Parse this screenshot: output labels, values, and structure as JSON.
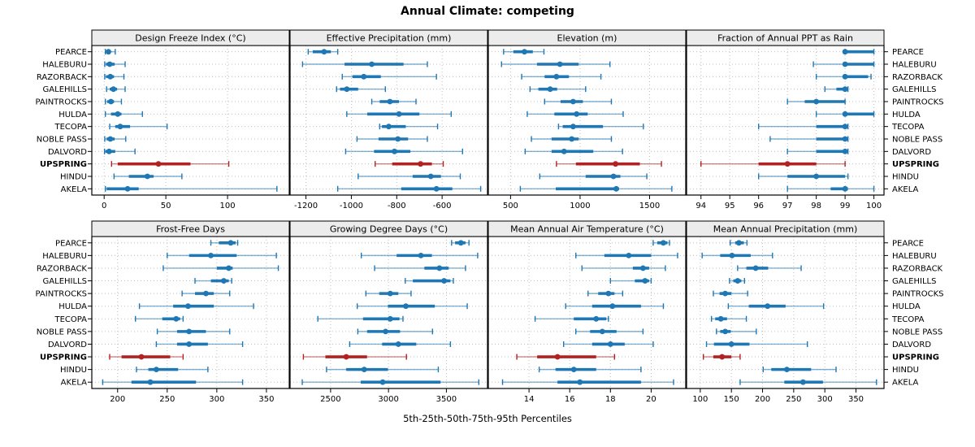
{
  "title": "Annual Climate: competing",
  "footer": "5th-25th-50th-75th-95th Percentiles",
  "sites": [
    "PEARCE",
    "HALEBURU",
    "RAZORBACK",
    "GALEHILLS",
    "PAINTROCKS",
    "HULDA",
    "TECOPA",
    "NOBLE PASS",
    "DALVORD",
    "UPSPRING",
    "HINDU",
    "AKELA"
  ],
  "highlight_site": "UPSPRING",
  "colors": {
    "series": "#1f77b4",
    "highlight": "#b22222",
    "strip_bg": "#ececec",
    "grid": "#bfbfbf",
    "border": "#000000"
  },
  "chart_data": {
    "type": "percentile_dotplot",
    "title": "Annual Climate: competing",
    "caption": "5th-25th-50th-75th-95th Percentiles",
    "percentiles": [
      5,
      25,
      50,
      75,
      95
    ],
    "layout": {
      "rows": 2,
      "cols": 4
    },
    "legend": "none",
    "grid": "dotted",
    "panels": [
      {
        "title": "Design Freeze Index (°C)",
        "ticks": [
          0,
          50,
          100
        ],
        "xlim": [
          -10,
          150
        ],
        "values": {
          "PEARCE": [
            1,
            2,
            3.5,
            5,
            9
          ],
          "HALEBURU": [
            0.5,
            1.5,
            4.5,
            8.5,
            17
          ],
          "RAZORBACK": [
            0.5,
            1.5,
            5,
            8,
            16
          ],
          "GALEHILLS": [
            2,
            4.5,
            7.5,
            10.5,
            17
          ],
          "PAINTROCKS": [
            1,
            2.5,
            5.5,
            8,
            14
          ],
          "HULDA": [
            1,
            5.5,
            11,
            14,
            31
          ],
          "TECOPA": [
            4.5,
            9,
            13,
            21,
            51
          ],
          "NOBLE PASS": [
            0.5,
            2,
            5,
            8.5,
            17.5
          ],
          "DALVORD": [
            0.3,
            1,
            4,
            9,
            25
          ],
          "UPSPRING": [
            6,
            11,
            44,
            70,
            101
          ],
          "HINDU": [
            8,
            20,
            35,
            40,
            63
          ],
          "AKELA": [
            1,
            2,
            19,
            28,
            140
          ]
        }
      },
      {
        "title": "Effective Precipitation (mm)",
        "ticks": [
          -1200,
          -1000,
          -800,
          -600
        ],
        "xlim": [
          -1270,
          -400
        ],
        "values": {
          "PEARCE": [
            -1190,
            -1170,
            -1120,
            -1090,
            -1060
          ],
          "HALEBURU": [
            -1215,
            -1030,
            -910,
            -770,
            -665
          ],
          "RAZORBACK": [
            -1040,
            -995,
            -945,
            -870,
            -625
          ],
          "GALEHILLS": [
            -1065,
            -1050,
            -1020,
            -970,
            -850
          ],
          "PAINTROCKS": [
            -910,
            -875,
            -830,
            -790,
            -715
          ],
          "HULDA": [
            -1020,
            -930,
            -790,
            -700,
            -560
          ],
          "TECOPA": [
            -875,
            -865,
            -835,
            -760,
            -620
          ],
          "NOBLE PASS": [
            -975,
            -880,
            -795,
            -750,
            -665
          ],
          "DALVORD": [
            -1025,
            -900,
            -810,
            -740,
            -510
          ],
          "UPSPRING": [
            -895,
            -820,
            -695,
            -645,
            -595
          ],
          "HINDU": [
            -970,
            -730,
            -650,
            -605,
            -520
          ],
          "AKELA": [
            -1060,
            -780,
            -625,
            -555,
            -430
          ]
        }
      },
      {
        "title": "Elevation (m)",
        "ticks": [
          500,
          1000,
          1500
        ],
        "xlim": [
          340,
          1760
        ],
        "values": {
          "PEARCE": [
            450,
            520,
            600,
            660,
            740
          ],
          "HALEBURU": [
            435,
            690,
            855,
            990,
            1215
          ],
          "RAZORBACK": [
            580,
            745,
            830,
            920,
            1150
          ],
          "GALEHILLS": [
            640,
            700,
            785,
            835,
            1040
          ],
          "PAINTROCKS": [
            745,
            860,
            950,
            1020,
            1225
          ],
          "HULDA": [
            620,
            815,
            975,
            1055,
            1310
          ],
          "TECOPA": [
            845,
            875,
            950,
            1165,
            1455
          ],
          "NOBLE PASS": [
            650,
            795,
            940,
            990,
            1225
          ],
          "DALVORD": [
            605,
            795,
            885,
            1095,
            1305
          ],
          "UPSPRING": [
            830,
            970,
            1255,
            1430,
            1585
          ],
          "HINDU": [
            710,
            1040,
            1240,
            1290,
            1480
          ],
          "AKELA": [
            570,
            825,
            1260,
            1280,
            1660
          ]
        }
      },
      {
        "title": "Fraction of Annual PPT as Rain",
        "ticks": [
          94,
          95,
          96,
          97,
          98,
          99,
          100
        ],
        "xlim": [
          93.5,
          100.35
        ],
        "values": {
          "PEARCE": [
            99,
            99,
            99,
            100,
            100
          ],
          "HALEBURU": [
            97.9,
            99,
            99,
            100,
            100
          ],
          "RAZORBACK": [
            98,
            99,
            99,
            99.8,
            99.9
          ],
          "GALEHILLS": [
            98.3,
            98.7,
            99,
            99,
            99.1
          ],
          "PAINTROCKS": [
            97,
            97.6,
            98,
            99,
            99
          ],
          "HULDA": [
            98,
            99,
            99,
            100,
            100
          ],
          "TECOPA": [
            96,
            98,
            99,
            99,
            99.1
          ],
          "NOBLE PASS": [
            96.4,
            98,
            99,
            99,
            99.1
          ],
          "DALVORD": [
            97,
            98,
            99,
            99,
            99.1
          ],
          "UPSPRING": [
            94,
            96,
            97,
            98,
            99
          ],
          "HINDU": [
            96,
            97,
            98,
            99,
            99.1
          ],
          "AKELA": [
            97,
            98.5,
            99,
            99.1,
            100
          ]
        }
      },
      {
        "title": "Frost-Free Days",
        "ticks": [
          200,
          250,
          300,
          350
        ],
        "xlim": [
          174,
          373
        ],
        "values": {
          "PEARCE": [
            294,
            302,
            314,
            319,
            321
          ],
          "HALEBURU": [
            250,
            272,
            294,
            320,
            360
          ],
          "RAZORBACK": [
            246,
            300,
            312,
            316,
            362
          ],
          "GALEHILLS": [
            278,
            294,
            307,
            312,
            315
          ],
          "PAINTROCKS": [
            265,
            278,
            289,
            297,
            313
          ],
          "HULDA": [
            222,
            256,
            271,
            297,
            337
          ],
          "TECOPA": [
            218,
            245,
            259,
            263,
            266
          ],
          "NOBLE PASS": [
            240,
            260,
            272,
            289,
            313
          ],
          "DALVORD": [
            239,
            260,
            272,
            291,
            326
          ],
          "UPSPRING": [
            192,
            204,
            224,
            253,
            266
          ],
          "HINDU": [
            219,
            231,
            239,
            261,
            291
          ],
          "AKELA": [
            185,
            214,
            233,
            279,
            326
          ]
        }
      },
      {
        "title": "Growing Degree Days (°C)",
        "ticks": [
          2500,
          3000,
          3500
        ],
        "xlim": [
          2150,
          3855
        ],
        "values": {
          "PEARCE": [
            3545,
            3575,
            3625,
            3665,
            3695
          ],
          "HALEBURU": [
            2765,
            3070,
            3280,
            3375,
            3770
          ],
          "RAZORBACK": [
            2880,
            3310,
            3440,
            3520,
            3665
          ],
          "GALEHILLS": [
            3145,
            3210,
            3480,
            3535,
            3560
          ],
          "PAINTROCKS": [
            2805,
            2920,
            3015,
            3085,
            3195
          ],
          "HULDA": [
            2730,
            2995,
            3150,
            3400,
            3680
          ],
          "TECOPA": [
            2390,
            2780,
            3015,
            3095,
            3125
          ],
          "NOBLE PASS": [
            2735,
            2815,
            2975,
            3100,
            3380
          ],
          "DALVORD": [
            2665,
            2945,
            3085,
            3240,
            3535
          ],
          "UPSPRING": [
            2265,
            2455,
            2635,
            2815,
            3155
          ],
          "HINDU": [
            2465,
            2635,
            2790,
            2995,
            3430
          ],
          "AKELA": [
            2255,
            2760,
            2950,
            3450,
            3780
          ]
        }
      },
      {
        "title": "Mean Annual Air Temperature (°C)",
        "ticks": [
          14,
          16,
          18,
          20
        ],
        "xlim": [
          12,
          21.7
        ],
        "values": {
          "PEARCE": [
            20.1,
            20.3,
            20.6,
            20.8,
            20.9
          ],
          "HALEBURU": [
            16.3,
            17.7,
            18.9,
            20,
            21.3
          ],
          "RAZORBACK": [
            16.6,
            19.1,
            19.6,
            19.9,
            20.7
          ],
          "GALEHILLS": [
            18,
            19.2,
            19.7,
            19.9,
            20
          ],
          "PAINTROCKS": [
            16.9,
            17.4,
            17.9,
            18.2,
            18.6
          ],
          "HULDA": [
            15.8,
            17.1,
            18.1,
            19.5,
            20.6
          ],
          "TECOPA": [
            14.3,
            16.2,
            17.3,
            17.8,
            17.9
          ],
          "NOBLE PASS": [
            16.3,
            17,
            17.6,
            18.3,
            19.6
          ],
          "DALVORD": [
            15.7,
            17.1,
            18,
            18.7,
            20.1
          ],
          "UPSPRING": [
            13.4,
            14.4,
            15.4,
            17.3,
            18.2
          ],
          "HINDU": [
            14.5,
            15.3,
            16.2,
            17.3,
            19.5
          ],
          "AKELA": [
            12.7,
            15.4,
            16.5,
            19.5,
            21.1
          ]
        }
      },
      {
        "title": "Mean Annual Precipitation (mm)",
        "ticks": [
          100,
          150,
          200,
          250,
          300,
          350
        ],
        "xlim": [
          78,
          395
        ],
        "values": {
          "PEARCE": [
            148,
            156,
            162,
            170,
            175
          ],
          "HALEBURU": [
            103,
            132,
            151,
            181,
            216
          ],
          "RAZORBACK": [
            160,
            174,
            189,
            209,
            262
          ],
          "GALEHILLS": [
            147,
            153,
            160,
            166,
            171
          ],
          "PAINTROCKS": [
            121,
            131,
            140,
            150,
            176
          ],
          "HULDA": [
            145,
            178,
            208,
            237,
            298
          ],
          "TECOPA": [
            118,
            124,
            133,
            143,
            174
          ],
          "NOBLE PASS": [
            126,
            132,
            140,
            149,
            190
          ],
          "DALVORD": [
            110,
            122,
            150,
            179,
            272
          ],
          "UPSPRING": [
            105,
            121,
            135,
            150,
            164
          ],
          "HINDU": [
            201,
            214,
            239,
            278,
            318
          ],
          "AKELA": [
            164,
            235,
            265,
            297,
            383
          ]
        }
      }
    ]
  }
}
